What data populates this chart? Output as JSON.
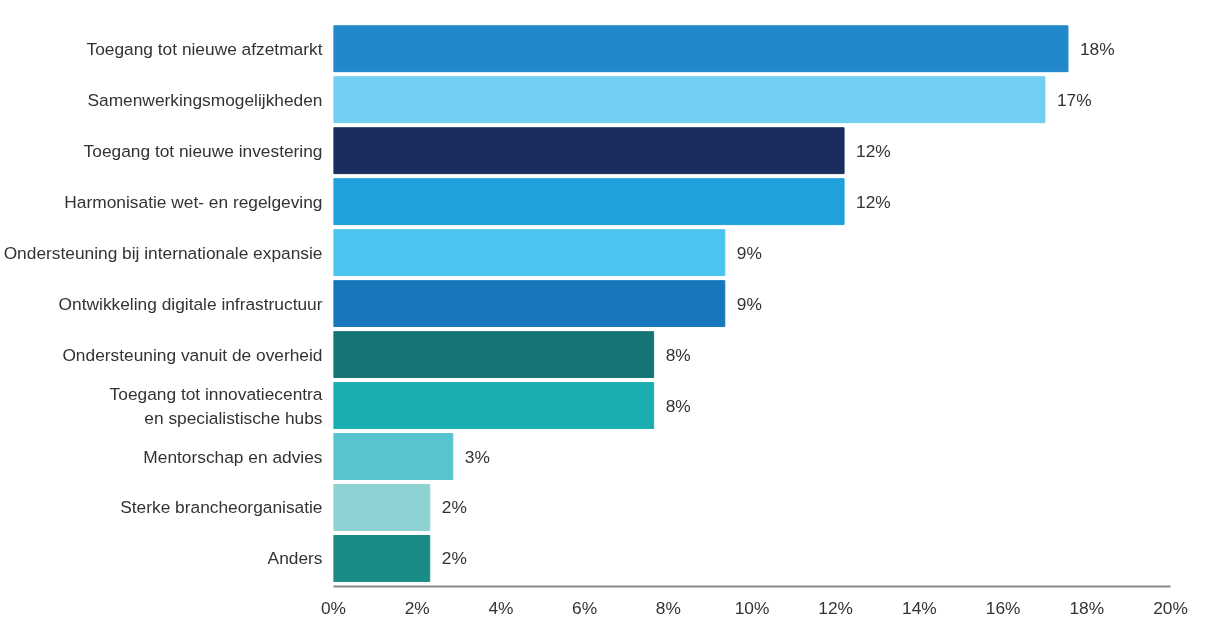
{
  "chart_data": {
    "type": "bar",
    "orientation": "horizontal",
    "categories": [
      "Toegang tot nieuwe afzetmarkt",
      "Samenwerkingsmogelijkheden",
      "Toegang tot nieuwe investering",
      "Harmonisatie wet- en regelgeving",
      "Ondersteuning bij internationale expansie",
      "Ontwikkeling digitale infrastructuur",
      "Ondersteuning vanuit de overheid",
      "Toegang tot innovatiecentra\nen specialistische hubs",
      "Mentorschap en advies",
      "Sterke brancheorganisatie",
      "Anders"
    ],
    "values": [
      17.55,
      17.0,
      12.2,
      12.2,
      9.35,
      9.35,
      7.65,
      7.65,
      2.85,
      2.3,
      2.3
    ],
    "value_labels": [
      "18%",
      "17%",
      "12%",
      "12%",
      "9%",
      "9%",
      "8%",
      "8%",
      "3%",
      "2%",
      "2%"
    ],
    "colors": [
      "#2288cc",
      "#72cff2",
      "#1b2d5e",
      "#1ea1dd",
      "#4cc4ef",
      "#1677bb",
      "#177475",
      "#1aaeb1",
      "#56c5cf",
      "#8dd3d3",
      "#1a8c86"
    ],
    "xlim": [
      0,
      20
    ],
    "xticks": [
      {
        "value": 0,
        "label": "0%"
      },
      {
        "value": 2,
        "label": "2%"
      },
      {
        "value": 4,
        "label": "4%"
      },
      {
        "value": 6,
        "label": "6%"
      },
      {
        "value": 8,
        "label": "8%"
      },
      {
        "value": 10,
        "label": "10%"
      },
      {
        "value": 12,
        "label": "12%"
      },
      {
        "value": 14,
        "label": "14%"
      },
      {
        "value": 16,
        "label": "16%"
      },
      {
        "value": 18,
        "label": "18%"
      },
      {
        "value": 20,
        "label": "20%"
      }
    ],
    "grid": false
  }
}
